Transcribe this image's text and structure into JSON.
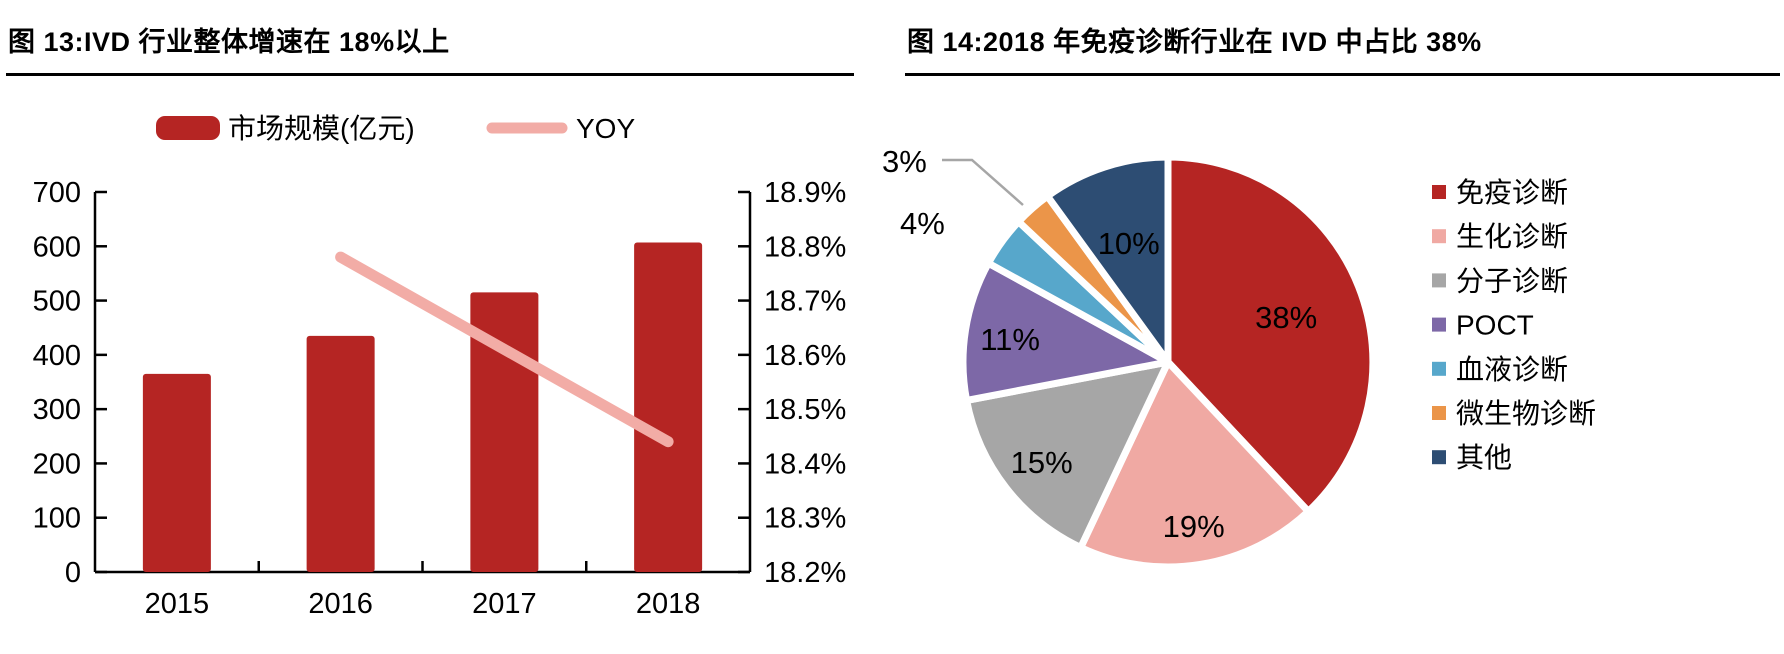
{
  "page": {
    "background": "#FFFFFF"
  },
  "figure13": {
    "title": "图 13:IVD 行业整体增速在 18%以上",
    "chart_data": {
      "type": "bar+line",
      "categories": [
        "2015",
        "2016",
        "2017",
        "2018"
      ],
      "series": [
        {
          "name": "市场规模(亿元)",
          "type": "bar",
          "axis": "left",
          "values": [
            365,
            435,
            515,
            607
          ]
        },
        {
          "name": "YOY",
          "type": "line",
          "axis": "right",
          "categories": [
            "2016",
            "2017",
            "2018"
          ],
          "values_pct": [
            18.78,
            18.61,
            18.44
          ]
        }
      ],
      "left_axis": {
        "min": 0,
        "max": 700,
        "step": 100,
        "tick_labels": [
          "700",
          "600",
          "500",
          "400",
          "300",
          "200",
          "100",
          "0"
        ]
      },
      "right_axis": {
        "min": 18.2,
        "max": 18.9,
        "step": 0.1,
        "tick_labels": [
          "18.9%",
          "18.8%",
          "18.7%",
          "18.6%",
          "18.5%",
          "18.4%",
          "18.3%",
          "18.2%"
        ]
      },
      "legend": [
        {
          "label": "市场规模(亿元)",
          "swatch": "bar"
        },
        {
          "label": "YOY",
          "swatch": "line"
        }
      ],
      "colors": {
        "bar": "#B52523",
        "line": "#F2ACA6",
        "axis": "#000000"
      },
      "grid": "off",
      "legend_position": "top"
    }
  },
  "figure14": {
    "title": "图 14:2018 年免疫诊断行业在 IVD 中占比 38%",
    "chart_data": {
      "type": "pie",
      "start_angle": "top",
      "direction": "clockwise",
      "slices": [
        {
          "label": "免疫诊断",
          "value": 38,
          "pct_label": "38%",
          "color": "#B52523",
          "label_placement": "inside"
        },
        {
          "label": "生化诊断",
          "value": 19,
          "pct_label": "19%",
          "color": "#F0A9A3",
          "label_placement": "inside"
        },
        {
          "label": "分子诊断",
          "value": 15,
          "pct_label": "15%",
          "color": "#A6A6A6",
          "label_placement": "inside"
        },
        {
          "label": "POCT",
          "value": 11,
          "pct_label": "11%",
          "color": "#7D68A7",
          "label_placement": "inside"
        },
        {
          "label": "血液诊断",
          "value": 4,
          "pct_label": "4%",
          "color": "#57A7CB",
          "label_placement": "outside"
        },
        {
          "label": "微生物诊断",
          "value": 3,
          "pct_label": "3%",
          "color": "#EB9549",
          "label_placement": "outside-leader"
        },
        {
          "label": "其他",
          "value": 10,
          "pct_label": "10%",
          "color": "#2D4D73",
          "label_placement": "inside"
        }
      ],
      "leader_color": "#A6A6A6",
      "legend_position": "right"
    }
  }
}
